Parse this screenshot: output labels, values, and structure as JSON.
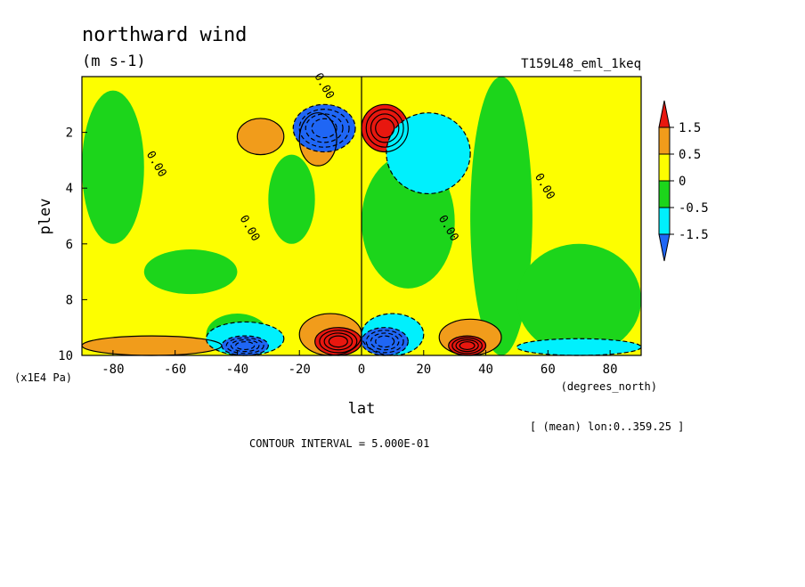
{
  "chart_data": {
    "type": "heatmap",
    "title": "northward wind",
    "units": "(m s-1)",
    "run_label": "T159L48_eml_1keq",
    "xlabel": "lat",
    "xlabel_units": "(degrees_north)",
    "ylabel": "plev",
    "ylabel_units": "(x1E4 Pa)",
    "xlim": [
      -90,
      90
    ],
    "ylim": [
      0,
      10
    ],
    "y_inverted": true,
    "x_ticks": [
      "-80",
      "-60",
      "-40",
      "-20",
      "0",
      "20",
      "40",
      "60",
      "80"
    ],
    "y_ticks": [
      "2",
      "4",
      "6",
      "8",
      "10"
    ],
    "mean_note": "[ (mean) lon:0..359.25 ]",
    "contour_interval": "CONTOUR INTERVAL = 5.000E-01",
    "zero_contour_label": "0.00",
    "colorbar": {
      "labels": [
        "1.5",
        "0.5",
        "0",
        "-0.5",
        "-1.5"
      ],
      "colors": [
        "#e8170f",
        "#f19c1b",
        "#fdfe00",
        "#1cd51b",
        "#00f0fd",
        "#1f66f5"
      ]
    },
    "fields": [
      {
        "level": "yellow",
        "lat": [
          -3,
          3
        ],
        "plev": [
          0,
          10
        ]
      },
      {
        "level": "green",
        "lat": [
          0,
          30
        ],
        "plev": [
          2.8,
          7.6
        ]
      },
      {
        "level": "green",
        "lat": [
          -90,
          -70
        ],
        "plev": [
          0.5,
          6.0
        ]
      },
      {
        "level": "green",
        "lat": [
          -70,
          -40
        ],
        "plev": [
          6.2,
          7.8
        ]
      },
      {
        "level": "green",
        "lat": [
          -30,
          -15
        ],
        "plev": [
          2.8,
          6.0
        ]
      },
      {
        "level": "green",
        "lat": [
          35,
          55
        ],
        "plev": [
          0,
          10
        ]
      },
      {
        "level": "green",
        "lat": [
          50,
          90
        ],
        "plev": [
          6.0,
          10
        ]
      },
      {
        "level": "green",
        "lat": [
          -50,
          -30
        ],
        "plev": [
          8.5,
          10
        ]
      },
      {
        "level": "orange",
        "lat": [
          -40,
          -25
        ],
        "plev": [
          1.5,
          2.8
        ]
      },
      {
        "level": "orange",
        "lat": [
          -20,
          -8
        ],
        "plev": [
          1.3,
          3.2
        ]
      },
      {
        "level": "blue",
        "lat": [
          -22,
          -2
        ],
        "plev": [
          1.0,
          2.7
        ]
      },
      {
        "level": "red",
        "lat": [
          0,
          15
        ],
        "plev": [
          1.0,
          2.7
        ]
      },
      {
        "level": "cyan",
        "lat": [
          8,
          35
        ],
        "plev": [
          1.3,
          4.2
        ]
      },
      {
        "level": "orange",
        "lat": [
          -90,
          -45
        ],
        "plev": [
          9.3,
          10
        ]
      },
      {
        "level": "cyan",
        "lat": [
          -50,
          -25
        ],
        "plev": [
          8.8,
          10
        ]
      },
      {
        "level": "blue",
        "lat": [
          -45,
          -30
        ],
        "plev": [
          9.3,
          10
        ]
      },
      {
        "level": "orange",
        "lat": [
          -20,
          0
        ],
        "plev": [
          8.5,
          10
        ]
      },
      {
        "level": "red",
        "lat": [
          -15,
          0
        ],
        "plev": [
          9.0,
          10
        ]
      },
      {
        "level": "cyan",
        "lat": [
          0,
          20
        ],
        "plev": [
          8.5,
          10
        ]
      },
      {
        "level": "blue",
        "lat": [
          0,
          15
        ],
        "plev": [
          9.0,
          10
        ]
      },
      {
        "level": "orange",
        "lat": [
          25,
          45
        ],
        "plev": [
          8.7,
          10
        ]
      },
      {
        "level": "red",
        "lat": [
          28,
          40
        ],
        "plev": [
          9.3,
          10
        ]
      },
      {
        "level": "cyan",
        "lat": [
          50,
          90
        ],
        "plev": [
          9.4,
          10
        ]
      }
    ]
  }
}
